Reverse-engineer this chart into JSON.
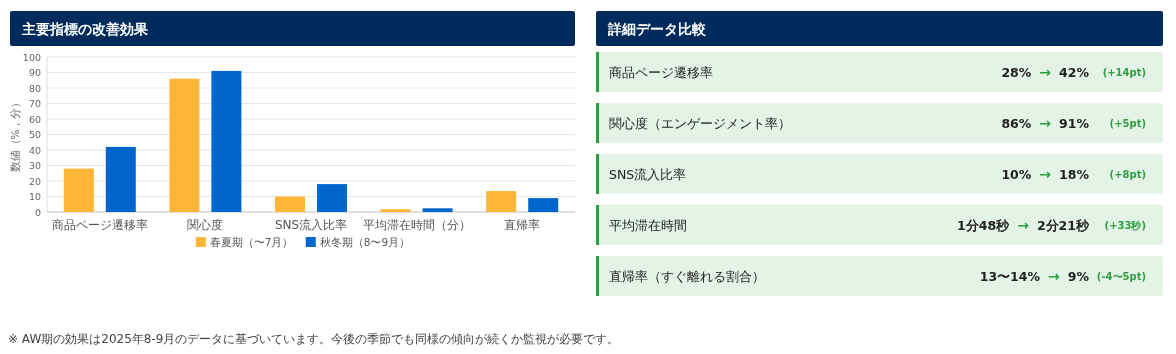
{
  "chart_data": [
    {
      "type": "bar",
      "title": "主要指標の改善効果",
      "ylabel": "数値（%，分）",
      "categories": [
        "商品ページ遷移率",
        "関心度",
        "SNS流入比率",
        "平均滞在時間（分）",
        "直帰率"
      ],
      "series": [
        {
          "name": "春夏期（〜7月）",
          "color": "#ffb636",
          "values": [
            28,
            86,
            10,
            1.8,
            13.5
          ]
        },
        {
          "name": "秋冬期（8〜9月）",
          "color": "#0066cc",
          "values": [
            42,
            91,
            18,
            2.4,
            9
          ]
        }
      ],
      "ylim": [
        0,
        100
      ],
      "yticks": [
        0,
        10,
        20,
        30,
        40,
        50,
        60,
        70,
        80,
        90,
        100
      ],
      "grid": "y",
      "legend": "bottom",
      "annotations": [
        "※ AW期の効果は2025年8-9月のデータに基づいています。今後の季節でも同様の傾向が続くか監視が必要です。"
      ]
    },
    {
      "type": "other",
      "title": "詳細データ比較",
      "annotations": [
        "商品ページ遷移率",
        "28%",
        "→",
        "42%",
        "(+14pt)",
        "関心度（エンゲージメント率）",
        "86%",
        "→",
        "91%",
        "(+5pt)",
        "SNS流入比率",
        "10%",
        "→",
        "18%",
        "(+8pt)",
        "平均滞在時間",
        "1分48秒",
        "→",
        "2分21秒",
        "(+33秒)",
        "直帰率（すぐ離れる割合）",
        "13〜14%",
        "→",
        "9%",
        "(-4〜5pt)"
      ]
    }
  ]
}
